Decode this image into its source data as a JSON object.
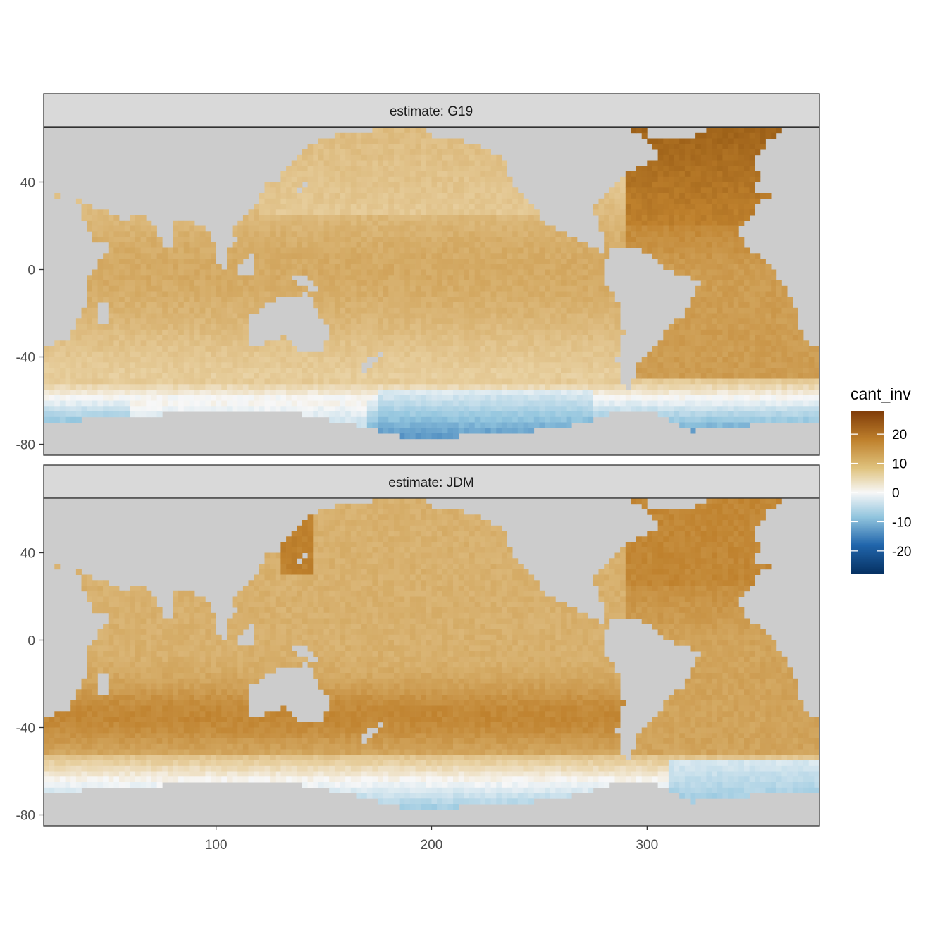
{
  "chart_data": {
    "type": "heatmap",
    "description_kind": "faceted global ocean map",
    "facets": [
      {
        "label": "estimate: G19",
        "bluest_region": "Southern Ocean south of Pacific (~ -65 lat, 180-270 lon)",
        "range_hint": [
          -8,
          22
        ]
      },
      {
        "label": "estimate: JDM",
        "bluest_region": "South Atlantic (~ -62 lat, 315-375 lon)",
        "range_hint": [
          -6,
          28
        ]
      }
    ],
    "x_ticks": [
      100,
      200,
      300
    ],
    "y_ticks": [
      40,
      0,
      -40,
      -80
    ],
    "xlim": [
      20,
      380
    ],
    "ylim": [
      -85,
      65
    ],
    "fill": {
      "name": "cant_inv",
      "breaks": [
        20,
        10,
        0,
        -10,
        -20
      ],
      "limits": [
        -28,
        28
      ],
      "colors": {
        "high": "#7f3b08",
        "mid_high": "#c08a3e",
        "zero": "#f5f5f5",
        "mid_low": "#4393c3",
        "low": "#053061"
      }
    },
    "land_color": "#cccccc",
    "panel_background": "#ffffff",
    "strip_color": "#d9d9d9",
    "legend_position": "right",
    "grid": false
  }
}
